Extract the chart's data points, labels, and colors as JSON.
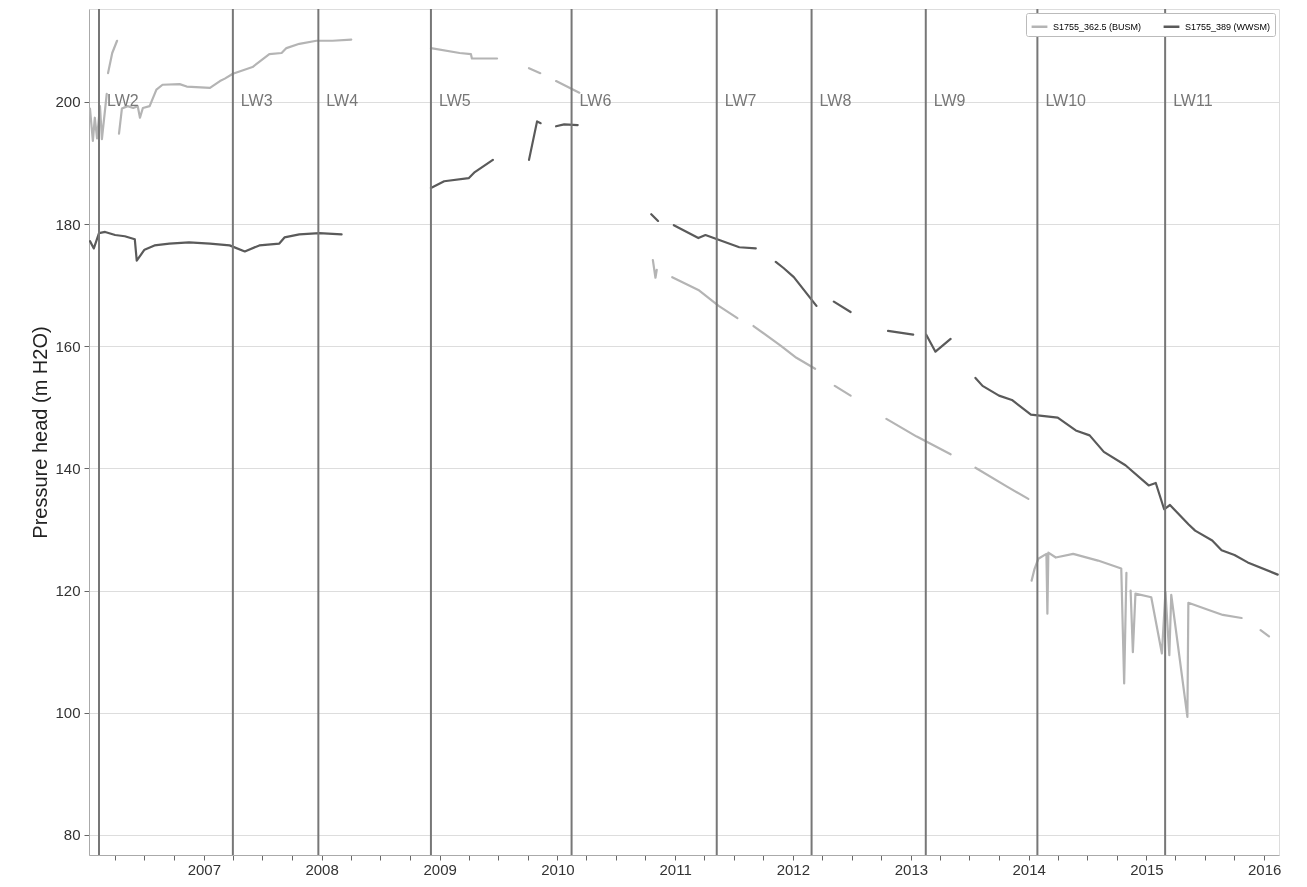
{
  "chart_data": {
    "type": "line",
    "ylabel": "Pressure head (m H2O)",
    "xlim": [
      "2006-01-10",
      "2016-02-16"
    ],
    "ylim": [
      76.7,
      215.2
    ],
    "xticks": [
      {
        "value": "2006-04-01",
        "label": null
      },
      {
        "value": "2006-07-01",
        "label": null
      },
      {
        "value": "2006-10-01",
        "label": null
      },
      "2007",
      {
        "value": "2007-04-01",
        "label": null
      },
      {
        "value": "2007-07-01",
        "label": null
      },
      {
        "value": "2007-10-01",
        "label": null
      },
      "2008",
      {
        "value": "2008-04-01",
        "label": null
      },
      {
        "value": "2008-07-01",
        "label": null
      },
      {
        "value": "2008-10-01",
        "label": null
      },
      "2009",
      {
        "value": "2009-04-01",
        "label": null
      },
      {
        "value": "2009-07-01",
        "label": null
      },
      {
        "value": "2009-10-01",
        "label": null
      },
      "2010",
      {
        "value": "2010-04-01",
        "label": null
      },
      {
        "value": "2010-07-01",
        "label": null
      },
      {
        "value": "2010-10-01",
        "label": null
      },
      "2011",
      {
        "value": "2011-04-01",
        "label": null
      },
      {
        "value": "2011-07-01",
        "label": null
      },
      {
        "value": "2011-10-01",
        "label": null
      },
      "2012",
      {
        "value": "2012-04-01",
        "label": null
      },
      {
        "value": "2012-07-01",
        "label": null
      },
      {
        "value": "2012-10-01",
        "label": null
      },
      "2013",
      {
        "value": "2013-04-01",
        "label": null
      },
      {
        "value": "2013-07-01",
        "label": null
      },
      {
        "value": "2013-10-01",
        "label": null
      },
      "2014",
      {
        "value": "2014-04-01",
        "label": null
      },
      {
        "value": "2014-07-01",
        "label": null
      },
      {
        "value": "2014-10-01",
        "label": null
      },
      "2015",
      {
        "value": "2015-04-01",
        "label": null
      },
      {
        "value": "2015-07-01",
        "label": null
      },
      {
        "value": "2015-10-01",
        "label": null
      },
      "2016"
    ],
    "yticks": [
      80,
      100,
      120,
      140,
      160,
      180,
      200
    ],
    "grid": "y",
    "legend": "top right",
    "line_style": "solid",
    "series": [
      {
        "name": "S1755_362.5 (BUSM)",
        "color": "#b4b4b4",
        "type": "line",
        "x": [
          "2006-01-13",
          "2006-01-22",
          "2006-01-28",
          "2006-02-04",
          "2006-02-13",
          "2006-02-19",
          "2006-03-06",
          "2006-03-08",
          "2006-03-10",
          "2006-03-23",
          "2006-04-07",
          "2006-04-10",
          "2006-04-13",
          "2006-04-22",
          "2006-05-10",
          "2006-05-27",
          "2006-06-10",
          "2006-06-17",
          "2006-06-26",
          "2006-07-17",
          "2006-08-07",
          "2006-08-26",
          "2006-10-18",
          "2006-11-09",
          "2007-01-20",
          "2007-02-20",
          "2007-03-07",
          "2007-04-01",
          "2007-06-01",
          "2007-07-23",
          "2007-08-30",
          "2007-09-14",
          "2007-10-24",
          "2007-12-16",
          "2008-02-04",
          "2008-04-02",
          "2008-06-01",
          "2008-12-05",
          "2009-03-04",
          "2009-04-08",
          "2009-04-11",
          "2009-06-28",
          "2009-08-01",
          "2009-10-05",
          "2009-11-09",
          "2009-11-20",
          "2009-12-28",
          "2010-03-10",
          "2010-06-01",
          "2010-10-24",
          "2010-11-01",
          "2010-11-05",
          "2010-11-15",
          "2010-12-23",
          "2011-03-14",
          "2011-05-16",
          "2011-07-13",
          "2011-07-25",
          "2011-09-01",
          "2011-11-24",
          "2012-01-12",
          "2012-03-10",
          "2012-04-01",
          "2012-05-10",
          "2012-06-28",
          "2012-08-01",
          "2012-10-17",
          "2013-01-19",
          "2013-05-04",
          "2013-06-01",
          "2013-07-20",
          "2013-10-26",
          "2013-12-31",
          "2014-01-05",
          "2014-01-10",
          "2014-01-19",
          "2014-01-31",
          "2014-02-25",
          "2014-02-28",
          "2014-03-03",
          "2014-03-26",
          "2014-05-19",
          "2014-08-04",
          "2014-10-15",
          "2014-10-24",
          "2014-10-31",
          "2014-11-04",
          "2014-11-13",
          "2014-11-20",
          "2014-11-28",
          "2015-01-16",
          "2015-02-18",
          "2015-03-01",
          "2015-03-13",
          "2015-03-19",
          "2015-05-08",
          "2015-05-11",
          "2015-07-13",
          "2015-08-26",
          "2015-10-23",
          "2015-11-15",
          "2015-12-21",
          "2016-01-16"
        ],
        "values": [
          198.9,
          193.6,
          197.4,
          194,
          199.3,
          193.9,
          201.3,
          null,
          204.7,
          208,
          210,
          null,
          194.8,
          198.9,
          199.3,
          199,
          199.3,
          197.4,
          199,
          199.3,
          202,
          202.8,
          202.9,
          202.5,
          202.3,
          203.4,
          203.8,
          204.6,
          205.7,
          207.8,
          208,
          208.8,
          209.5,
          210,
          210,
          210.2,
          null,
          208.8,
          208,
          207.8,
          207.1,
          207.1,
          null,
          205.5,
          204.7,
          null,
          203.4,
          201.5,
          null,
          174.1,
          171.2,
          172.5,
          null,
          171.3,
          169.2,
          166.6,
          164.6,
          null,
          163.3,
          160.1,
          158.1,
          156.3,
          null,
          153.5,
          151.9,
          null,
          148.1,
          145.2,
          142.3,
          null,
          140.1,
          137,
          135,
          null,
          121.6,
          123.5,
          125.2,
          126,
          116.2,
          126.2,
          125.4,
          126,
          124.9,
          123.6,
          104.8,
          122.9,
          null,
          120,
          109.9,
          119.5,
          118.9,
          109.7,
          119.8,
          109.4,
          119.3,
          99.3,
          118,
          116.8,
          116,
          115.5,
          null,
          113.5,
          112.5
        ]
      },
      {
        "name": "S1755_389 (WWSM)",
        "color": "#5a5a5a",
        "type": "line",
        "x": [
          "2006-01-13",
          "2006-01-25",
          "2006-02-10",
          "2006-03-01",
          "2006-04-01",
          "2006-05-01",
          "2006-06-01",
          "2006-06-07",
          "2006-07-01",
          "2006-08-01",
          "2006-09-16",
          "2006-11-16",
          "2007-01-20",
          "2007-03-22",
          "2007-05-08",
          "2007-06-22",
          "2007-08-23",
          "2007-09-08",
          "2007-10-24",
          "2007-12-25",
          "2008-03-03",
          "2008-06-01",
          "2008-12-05",
          "2009-01-15",
          "2009-04-01",
          "2009-04-20",
          "2009-06-15",
          "2009-08-01",
          "2009-10-05",
          "2009-10-30",
          "2009-11-10",
          "2009-12-01",
          "2009-12-28",
          "2010-01-22",
          "2010-03-05",
          "2010-06-01",
          "2010-10-19",
          "2010-11-09",
          "2010-11-20",
          "2010-12-28",
          "2011-03-14",
          "2011-04-05",
          "2011-07-19",
          "2011-09-08",
          "2011-09-25",
          "2011-11-09",
          "2011-12-03",
          "2012-01-04",
          "2012-03-14",
          "2012-04-01",
          "2012-05-07",
          "2012-06-28",
          "2012-08-01",
          "2012-10-22",
          "2013-01-08",
          "2013-01-20",
          "2013-02-17",
          "2013-03-18",
          "2013-05-04",
          "2013-06-01",
          "2013-07-20",
          "2013-08-11",
          "2013-10-01",
          "2013-11-10",
          "2014-01-08",
          "2014-04-01",
          "2014-05-27",
          "2014-07-09",
          "2014-08-22",
          "2014-10-28",
          "2015-01-08",
          "2015-01-30",
          "2015-02-25",
          "2015-03-15",
          "2015-05-12",
          "2015-06-01",
          "2015-07-24",
          "2015-08-22",
          "2015-10-01",
          "2015-11-11",
          "2016-02-12"
        ],
        "values": [
          177.2,
          176,
          178.5,
          178.7,
          178.2,
          178,
          177.5,
          174,
          175.8,
          176.5,
          176.8,
          177,
          176.8,
          176.5,
          175.5,
          176.5,
          176.8,
          177.8,
          178.3,
          178.5,
          178.3,
          null,
          185.9,
          187,
          187.5,
          188.5,
          190.5,
          null,
          190.5,
          196.8,
          196.5,
          null,
          196,
          196.3,
          196.2,
          null,
          181.6,
          180.5,
          null,
          179.8,
          177.7,
          178.2,
          176.2,
          176,
          null,
          173.8,
          172.8,
          171.3,
          166.6,
          null,
          167.3,
          165.6,
          null,
          162.5,
          161.9,
          null,
          161.9,
          159.1,
          161.2,
          null,
          154.8,
          153.5,
          151.9,
          151.2,
          148.8,
          148.3,
          146.2,
          145.4,
          142.7,
          140.5,
          137.2,
          137.6,
          133.3,
          134,
          130.8,
          129.8,
          128.2,
          126.6,
          125.8,
          124.6,
          122.6
        ]
      }
    ],
    "ref_lines": [
      {
        "axis": "x",
        "value": "2006-02-10",
        "label": "LW2",
        "color": "#777777",
        "line_style": "solid"
      },
      {
        "axis": "x",
        "value": "2007-04-01",
        "label": "LW3",
        "color": "#777777",
        "line_style": "solid"
      },
      {
        "axis": "x",
        "value": "2007-12-22",
        "label": "LW4",
        "color": "#777777",
        "line_style": "solid"
      },
      {
        "axis": "x",
        "value": "2008-12-05",
        "label": "LW5",
        "color": "#777777",
        "line_style": "solid"
      },
      {
        "axis": "x",
        "value": "2010-02-14",
        "label": "LW6",
        "color": "#777777",
        "line_style": "solid"
      },
      {
        "axis": "x",
        "value": "2011-05-10",
        "label": "LW7",
        "color": "#777777",
        "line_style": "solid"
      },
      {
        "axis": "x",
        "value": "2012-02-28",
        "label": "LW8",
        "color": "#777777",
        "line_style": "solid"
      },
      {
        "axis": "x",
        "value": "2013-02-16",
        "label": "LW9",
        "color": "#777777",
        "line_style": "solid"
      },
      {
        "axis": "x",
        "value": "2014-01-28",
        "label": "LW10",
        "color": "#777777",
        "line_style": "solid"
      },
      {
        "axis": "x",
        "value": "2015-02-28",
        "label": "LW11",
        "color": "#777777",
        "line_style": "solid"
      }
    ]
  }
}
